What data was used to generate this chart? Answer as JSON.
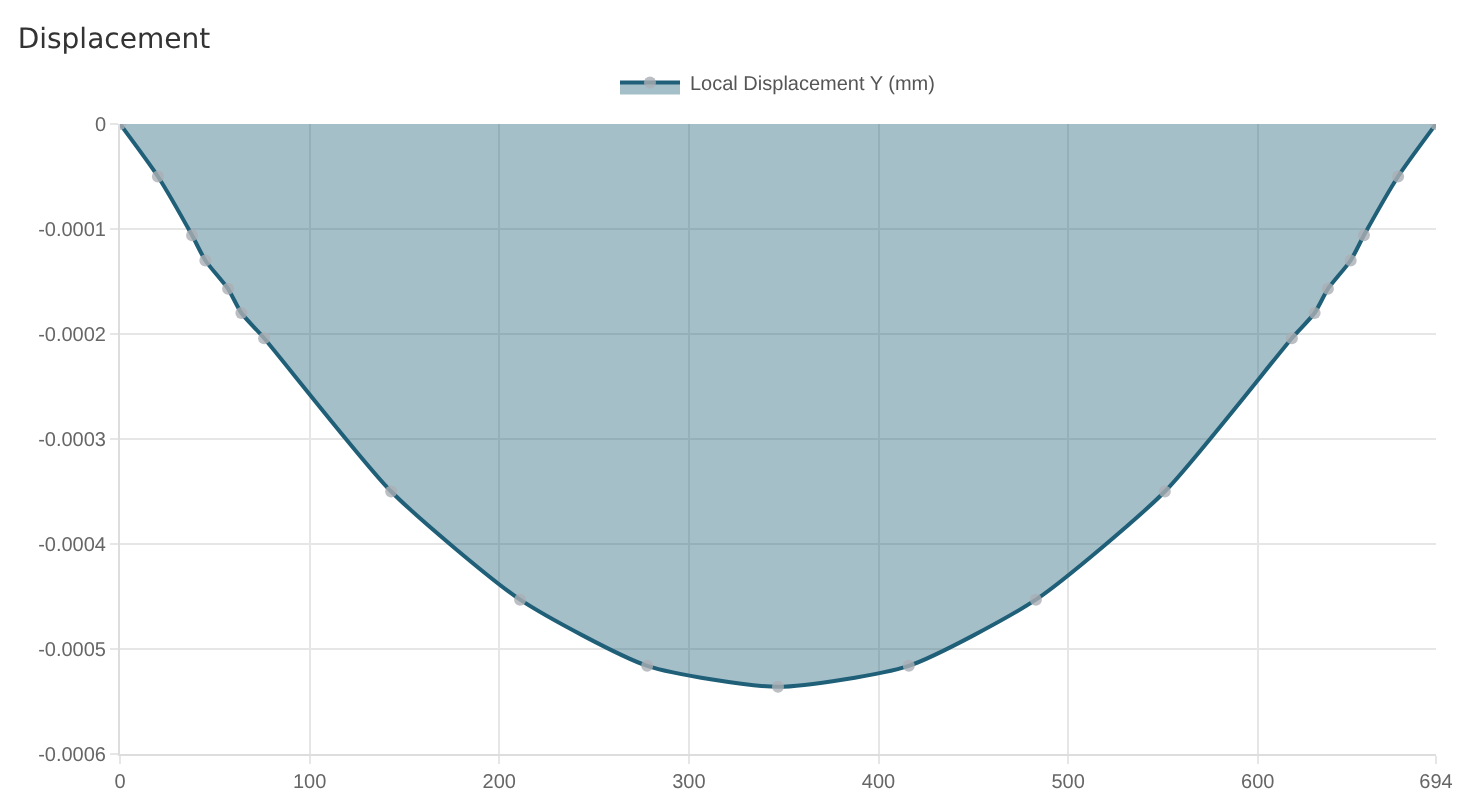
{
  "chart_data": {
    "type": "area",
    "title": "Displacement",
    "x": [
      0,
      20,
      38,
      45,
      57,
      64,
      76,
      143,
      211,
      278,
      347,
      416,
      483,
      551,
      618,
      630,
      637,
      649,
      656,
      674,
      694
    ],
    "series": [
      {
        "name": "Local Displacement Y (mm)",
        "color": "#1f5f78",
        "values": [
          0,
          -5e-05,
          -0.000106,
          -0.00013,
          -0.000157,
          -0.00018,
          -0.000204,
          -0.00035,
          -0.000453,
          -0.000516,
          -0.000536,
          -0.000516,
          -0.000453,
          -0.00035,
          -0.000204,
          -0.00018,
          -0.000157,
          -0.00013,
          -0.000106,
          -5e-05,
          0
        ]
      }
    ],
    "xlim": [
      0,
      694
    ],
    "xticks": [
      0,
      100,
      200,
      300,
      400,
      500,
      600,
      694
    ],
    "ylim": [
      -0.0006,
      0
    ],
    "yticks": [
      0,
      -0.0001,
      -0.0002,
      -0.0003,
      -0.0004,
      -0.0005,
      -0.0006
    ],
    "grid": true,
    "legend": "top",
    "marker": "circle"
  }
}
